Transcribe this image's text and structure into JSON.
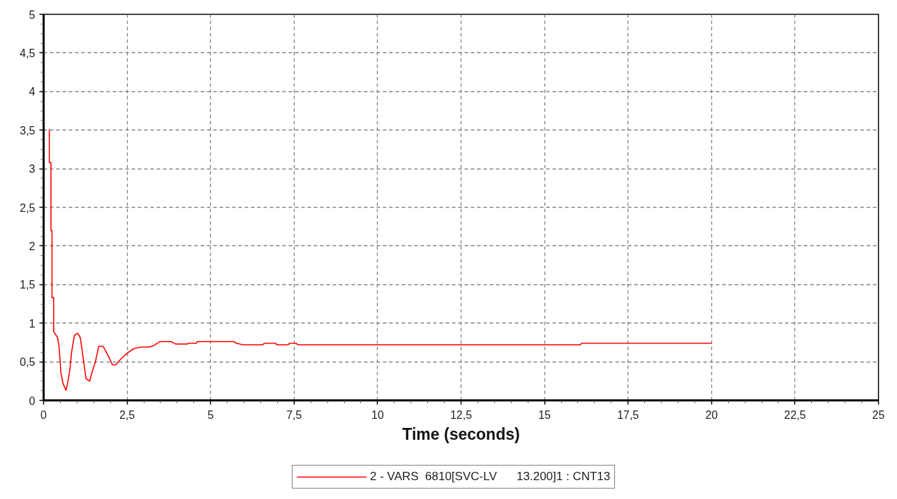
{
  "chart_data": {
    "type": "line",
    "xlabel": "Time (seconds)",
    "xlim": [
      0,
      25
    ],
    "ylim": [
      0,
      5
    ],
    "xticks": [
      0,
      {
        "value": 2.5,
        "label": "2,5"
      },
      5,
      {
        "value": 7.5,
        "label": "7,5"
      },
      10,
      {
        "value": 12.5,
        "label": "12,5"
      },
      15,
      {
        "value": 17.5,
        "label": "17,5"
      },
      20,
      {
        "value": 22.5,
        "label": "22,5"
      },
      25
    ],
    "yticks": [
      0,
      {
        "value": 0.5,
        "label": "0,5"
      },
      1,
      {
        "value": 1.5,
        "label": "1,5"
      },
      2,
      {
        "value": 2.5,
        "label": "2,5"
      },
      3,
      {
        "value": 3.5,
        "label": "3,5"
      },
      4,
      {
        "value": 4.5,
        "label": "4,5"
      },
      5
    ],
    "grid": true,
    "legend": "bottom",
    "line_style": "solid",
    "series": [
      {
        "name": "2 - VARS  6810[SVC-LV      13.200]1 : CNT13",
        "color": "#ff0000",
        "x": [
          0.17,
          0.17,
          0.22,
          0.22,
          0.25,
          0.25,
          0.3,
          0.3,
          0.35,
          0.42,
          0.46,
          0.49,
          0.52,
          0.58,
          0.67,
          0.73,
          0.78,
          0.84,
          0.92,
          1.02,
          1.1,
          1.17,
          1.27,
          1.38,
          1.44,
          1.55,
          1.65,
          1.78,
          1.92,
          2.06,
          2.16,
          2.3,
          2.5,
          2.7,
          2.91,
          3.16,
          3.3,
          3.47,
          3.82,
          3.95,
          4.29,
          4.36,
          4.57,
          4.6,
          5.7,
          5.77,
          5.97,
          6.55,
          6.62,
          6.93,
          7.0,
          7.31,
          7.38,
          7.55,
          7.62,
          16.08,
          16.1,
          20
        ],
        "values": [
          3.51,
          3.08,
          3.08,
          2.2,
          2.2,
          1.33,
          1.33,
          0.89,
          0.86,
          0.81,
          0.7,
          0.53,
          0.35,
          0.22,
          0.13,
          0.25,
          0.38,
          0.63,
          0.84,
          0.87,
          0.81,
          0.59,
          0.28,
          0.25,
          0.35,
          0.5,
          0.7,
          0.7,
          0.59,
          0.46,
          0.46,
          0.53,
          0.61,
          0.67,
          0.69,
          0.69,
          0.71,
          0.76,
          0.76,
          0.73,
          0.73,
          0.74,
          0.74,
          0.76,
          0.76,
          0.74,
          0.72,
          0.72,
          0.74,
          0.74,
          0.72,
          0.72,
          0.74,
          0.74,
          0.72,
          0.72,
          0.74,
          0.74
        ]
      }
    ]
  }
}
